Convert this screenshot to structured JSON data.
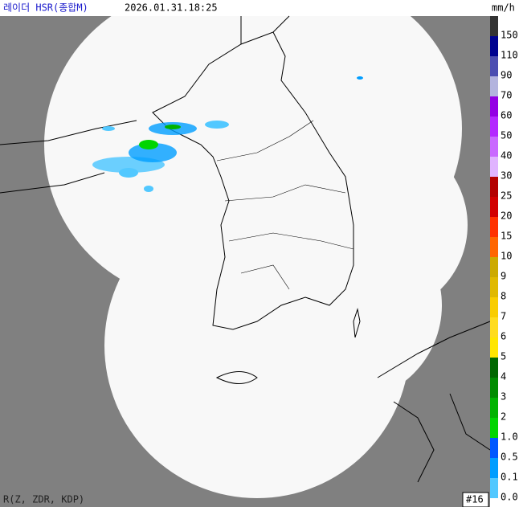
{
  "header": {
    "title": "레이더 HSR(종합M)",
    "time": "2026.01.31.18:25",
    "unit": "mm/h"
  },
  "legend": [
    {
      "label": "150",
      "color": "#333333"
    },
    {
      "label": "110",
      "color": "#000390"
    },
    {
      "label": "90",
      "color": "#4c4eb1"
    },
    {
      "label": "70",
      "color": "#b3b4de"
    },
    {
      "label": "60",
      "color": "#9300e4"
    },
    {
      "label": "50",
      "color": "#b329ff"
    },
    {
      "label": "40",
      "color": "#c969ff"
    },
    {
      "label": "30",
      "color": "#e0b4ff"
    },
    {
      "label": "25",
      "color": "#b40000"
    },
    {
      "label": "20",
      "color": "#d20000"
    },
    {
      "label": "15",
      "color": "#ff3200"
    },
    {
      "label": "10",
      "color": "#ff6600"
    },
    {
      "label": "9",
      "color": "#ccaa00"
    },
    {
      "label": "8",
      "color": "#e0b900"
    },
    {
      "label": "7",
      "color": "#f9cd00"
    },
    {
      "label": "6",
      "color": "#ffdc1f"
    },
    {
      "label": "5",
      "color": "#ffe600"
    },
    {
      "label": "4",
      "color": "#006800"
    },
    {
      "label": "3",
      "color": "#008c00"
    },
    {
      "label": "2",
      "color": "#00b300"
    },
    {
      "label": "1.0",
      "color": "#00d500"
    },
    {
      "label": "0.5",
      "color": "#0058ff"
    },
    {
      "label": "0.1",
      "color": "#009dff"
    },
    {
      "label": "0.0",
      "color": "#52c8ff"
    }
  ],
  "footer": {
    "method": "R(Z, ZDR, KDP)",
    "page": "#16"
  }
}
